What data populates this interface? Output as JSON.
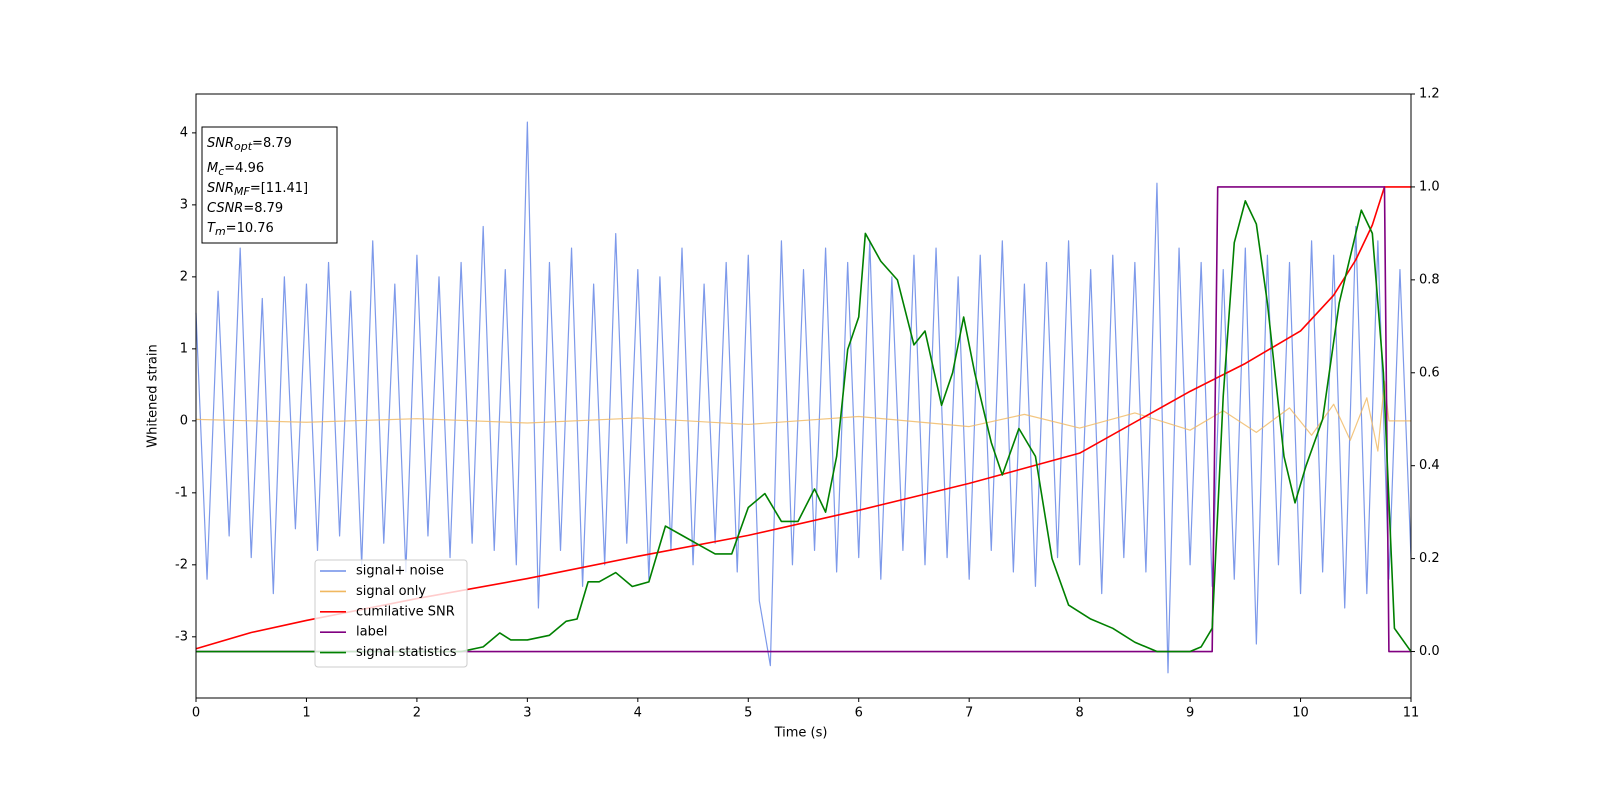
{
  "chart_data": {
    "type": "line",
    "xlabel": "Time (s)",
    "ylabel": "Whitened strain",
    "xlim": [
      0,
      11
    ],
    "xticks": [
      0,
      1,
      2,
      3,
      4,
      5,
      6,
      7,
      8,
      9,
      10,
      11
    ],
    "ylim": [
      -3.85,
      4.54
    ],
    "yticks": [
      -3,
      -2,
      -1,
      0,
      1,
      2,
      3,
      4
    ],
    "y2lim": [
      -0.1,
      1.2
    ],
    "y2ticks": [
      {
        "value": 0,
        "label": "0.0"
      },
      {
        "value": 0.2,
        "label": "0.2"
      },
      {
        "value": 0.4,
        "label": "0.4"
      },
      {
        "value": 0.6,
        "label": "0.6"
      },
      {
        "value": 0.8,
        "label": "0.8"
      },
      {
        "value": 1,
        "label": "1.0"
      },
      {
        "value": 1.2,
        "label": "1.2"
      }
    ],
    "annotation": [
      {
        "main": "SNR",
        "sub": "opt",
        "rest": "=8.79"
      },
      {
        "main": "M",
        "sub": "c",
        "rest": "=4.96"
      },
      {
        "main": "SNR",
        "sub": "MF",
        "rest": "=[11.41]"
      },
      {
        "main": "CSNR",
        "rest": "=8.79"
      },
      {
        "main": "T",
        "sub": "m",
        "rest": "=10.76"
      }
    ],
    "series": [
      {
        "name": "signal+ noise",
        "color": "#6f8ee8",
        "x": [
          0,
          0.1,
          0.2,
          0.3,
          0.4,
          0.5,
          0.6,
          0.7,
          0.8,
          0.9,
          1,
          1.1,
          1.2,
          1.3,
          1.4,
          1.5,
          1.6,
          1.7,
          1.8,
          1.9,
          2,
          2.1,
          2.2,
          2.3,
          2.4,
          2.5,
          2.6,
          2.7,
          2.8,
          2.9,
          3,
          3.1,
          3.2,
          3.3,
          3.4,
          3.5,
          3.6,
          3.7,
          3.8,
          3.9,
          4,
          4.1,
          4.2,
          4.3,
          4.4,
          4.5,
          4.6,
          4.7,
          4.8,
          4.9,
          5,
          5.1,
          5.2,
          5.3,
          5.4,
          5.5,
          5.6,
          5.7,
          5.8,
          5.9,
          6,
          6.1,
          6.2,
          6.3,
          6.4,
          6.5,
          6.6,
          6.7,
          6.8,
          6.9,
          7,
          7.1,
          7.2,
          7.3,
          7.4,
          7.5,
          7.6,
          7.7,
          7.8,
          7.9,
          8,
          8.1,
          8.2,
          8.3,
          8.4,
          8.5,
          8.6,
          8.7,
          8.8,
          8.9,
          9,
          9.1,
          9.2,
          9.3,
          9.4,
          9.5,
          9.6,
          9.7,
          9.8,
          9.9,
          10,
          10.1,
          10.2,
          10.3,
          10.4,
          10.5,
          10.6,
          10.7,
          10.8,
          10.9,
          11
        ],
        "values": [
          1.5,
          -2.2,
          1.8,
          -1.6,
          2.4,
          -1.9,
          1.7,
          -2.4,
          2.0,
          -1.5,
          1.9,
          -1.8,
          2.2,
          -1.6,
          1.8,
          -2.0,
          2.5,
          -1.7,
          1.9,
          -2.1,
          2.3,
          -1.6,
          2.0,
          -1.9,
          2.2,
          -1.7,
          2.7,
          -1.8,
          2.1,
          -2.0,
          4.15,
          -2.6,
          2.2,
          -1.8,
          2.4,
          -2.3,
          1.9,
          -2.0,
          2.6,
          -1.7,
          2.1,
          -2.2,
          2.0,
          -1.8,
          2.4,
          -2.0,
          1.9,
          -1.7,
          2.2,
          -2.1,
          2.3,
          -2.5,
          -3.4,
          2.5,
          -2.0,
          2.1,
          -1.8,
          2.4,
          -2.1,
          2.2,
          -1.9,
          2.5,
          -2.2,
          2.0,
          -1.8,
          2.3,
          -2.0,
          2.4,
          -1.9,
          2.0,
          -2.2,
          2.3,
          -1.8,
          2.5,
          -2.1,
          1.9,
          -2.3,
          2.2,
          -1.9,
          2.5,
          -2.0,
          2.1,
          -2.4,
          2.3,
          -1.9,
          2.2,
          -2.1,
          3.3,
          -3.5,
          2.4,
          -2.0,
          2.2,
          -2.3,
          2.1,
          -2.2,
          2.4,
          -3.1,
          2.3,
          -2.0,
          2.2,
          -2.4,
          2.5,
          -2.1,
          2.3,
          -2.6,
          2.7,
          -2.4,
          2.5,
          -2.2,
          2.1,
          -1.9
        ]
      },
      {
        "name": "signal only",
        "color": "#f0b860",
        "x": [
          0,
          1,
          2,
          3,
          4,
          5,
          6,
          7,
          7.5,
          8,
          8.5,
          9,
          9.3,
          9.6,
          9.9,
          10.1,
          10.3,
          10.45,
          10.6,
          10.7,
          10.76,
          10.8,
          11
        ],
        "values": [
          0.02,
          -0.02,
          0.03,
          -0.03,
          0.04,
          -0.05,
          0.06,
          -0.08,
          0.09,
          -0.1,
          0.11,
          -0.13,
          0.14,
          -0.16,
          0.18,
          -0.2,
          0.23,
          -0.27,
          0.32,
          -0.42,
          0.55,
          0,
          0
        ]
      },
      {
        "name": "cumilative SNR",
        "color": "red",
        "axis": "y2",
        "x": [
          0,
          0.5,
          1,
          2,
          3,
          4,
          5,
          6,
          7,
          8,
          9,
          9.5,
          10,
          10.3,
          10.5,
          10.65,
          10.76,
          11
        ],
        "values": [
          0.006,
          0.041,
          0.067,
          0.114,
          0.157,
          0.205,
          0.25,
          0.304,
          0.362,
          0.427,
          0.56,
          0.62,
          0.69,
          0.767,
          0.843,
          0.918,
          1.0,
          1.0
        ]
      },
      {
        "name": "label",
        "color": "purple",
        "axis": "y2",
        "x": [
          0,
          9.2,
          9.25,
          10.76,
          10.8,
          11
        ],
        "values": [
          0,
          0,
          1,
          1,
          0,
          0
        ]
      },
      {
        "name": "signal statistics",
        "color": "green",
        "axis": "y2",
        "x": [
          0,
          2.4,
          2.6,
          2.75,
          2.85,
          3.0,
          3.2,
          3.35,
          3.45,
          3.55,
          3.65,
          3.8,
          3.95,
          4.1,
          4.25,
          4.4,
          4.55,
          4.7,
          4.85,
          5.0,
          5.15,
          5.3,
          5.45,
          5.6,
          5.7,
          5.8,
          5.9,
          6.0,
          6.06,
          6.2,
          6.35,
          6.5,
          6.6,
          6.75,
          6.85,
          6.95,
          7.05,
          7.2,
          7.3,
          7.45,
          7.6,
          7.75,
          7.9,
          8.1,
          8.3,
          8.5,
          8.7,
          9.0,
          9.1,
          9.2,
          9.3,
          9.4,
          9.5,
          9.6,
          9.7,
          9.85,
          9.95,
          10.05,
          10.2,
          10.35,
          10.45,
          10.55,
          10.65,
          10.75,
          10.85,
          11
        ],
        "values": [
          0.0,
          0.0,
          0.01,
          0.04,
          0.025,
          0.025,
          0.035,
          0.065,
          0.07,
          0.15,
          0.15,
          0.17,
          0.14,
          0.15,
          0.27,
          0.25,
          0.23,
          0.21,
          0.21,
          0.31,
          0.34,
          0.28,
          0.28,
          0.35,
          0.3,
          0.42,
          0.65,
          0.72,
          0.9,
          0.84,
          0.8,
          0.66,
          0.69,
          0.53,
          0.6,
          0.72,
          0.6,
          0.45,
          0.38,
          0.48,
          0.42,
          0.2,
          0.1,
          0.07,
          0.05,
          0.02,
          0.0,
          0.0,
          0.01,
          0.05,
          0.55,
          0.88,
          0.97,
          0.92,
          0.75,
          0.42,
          0.32,
          0.4,
          0.5,
          0.75,
          0.85,
          0.95,
          0.9,
          0.6,
          0.05,
          0.0
        ]
      }
    ]
  }
}
